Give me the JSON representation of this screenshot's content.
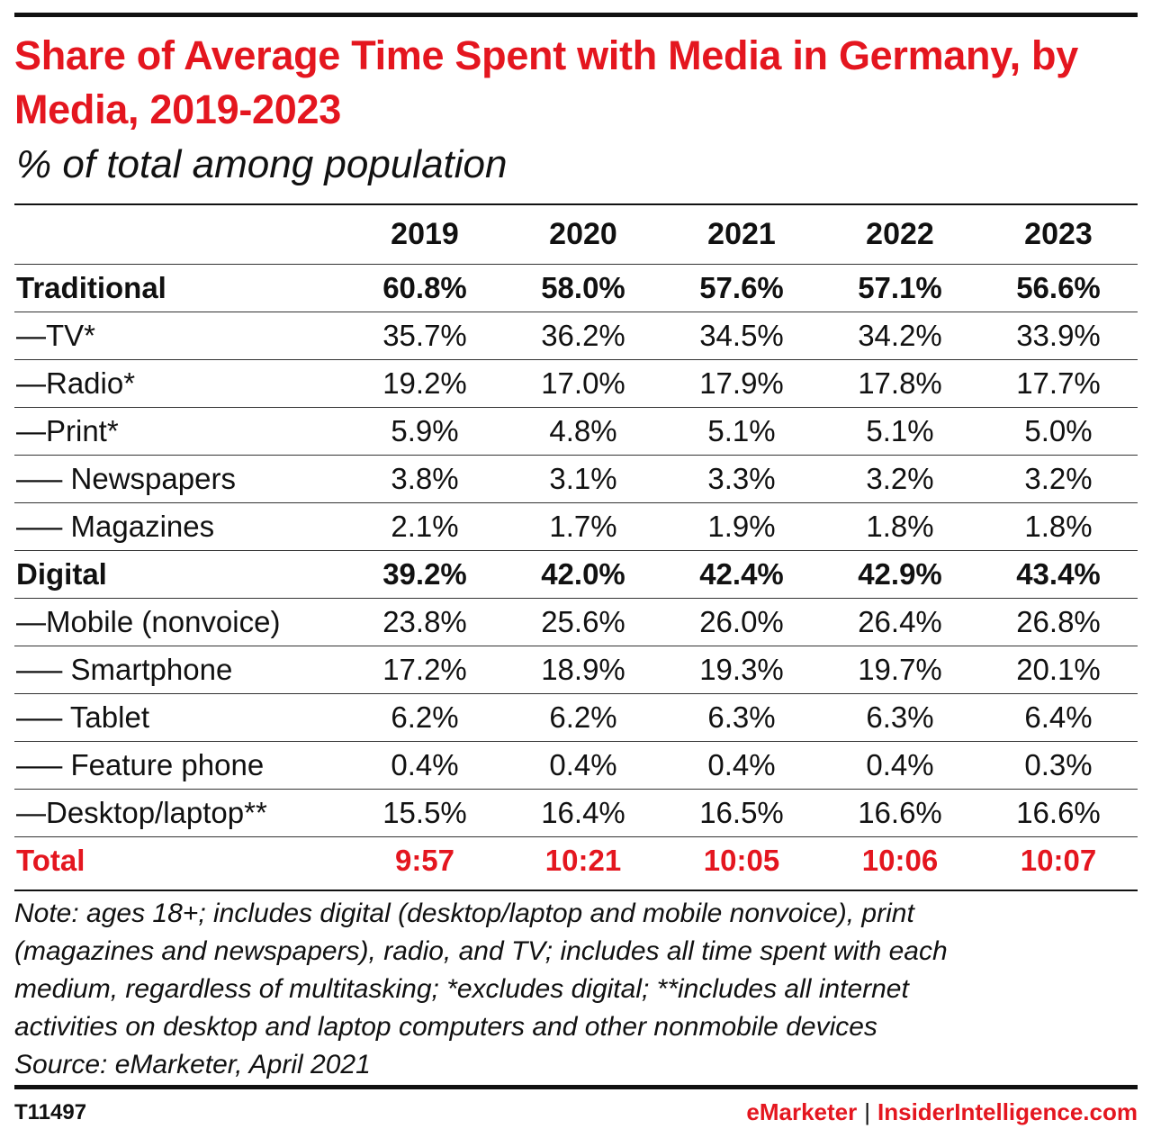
{
  "title": "Share of Average Time Spent with Media in Germany, by Media, 2019-2023",
  "subtitle": "% of total among population",
  "chart_data": {
    "type": "table",
    "title": "Share of Average Time Spent with Media in Germany, by Media, 2019-2023",
    "subtitle": "% of total among population",
    "columns": [
      "2019",
      "2020",
      "2021",
      "2022",
      "2023"
    ],
    "rows": [
      {
        "label": "Traditional",
        "style": "bold",
        "values": [
          "60.8%",
          "58.0%",
          "57.6%",
          "57.1%",
          "56.6%"
        ]
      },
      {
        "label": "—TV*",
        "style": "normal",
        "values": [
          "35.7%",
          "36.2%",
          "34.5%",
          "34.2%",
          "33.9%"
        ]
      },
      {
        "label": "—Radio*",
        "style": "normal",
        "values": [
          "19.2%",
          "17.0%",
          "17.9%",
          "17.8%",
          "17.7%"
        ]
      },
      {
        "label": "—Print*",
        "style": "normal",
        "values": [
          "5.9%",
          "4.8%",
          "5.1%",
          "5.1%",
          "5.0%"
        ]
      },
      {
        "label": "—– Newspapers",
        "style": "normal",
        "values": [
          "3.8%",
          "3.1%",
          "3.3%",
          "3.2%",
          "3.2%"
        ]
      },
      {
        "label": "—– Magazines",
        "style": "normal",
        "values": [
          "2.1%",
          "1.7%",
          "1.9%",
          "1.8%",
          "1.8%"
        ]
      },
      {
        "label": "Digital",
        "style": "bold",
        "values": [
          "39.2%",
          "42.0%",
          "42.4%",
          "42.9%",
          "43.4%"
        ]
      },
      {
        "label": "—Mobile (nonvoice)",
        "style": "normal",
        "values": [
          "23.8%",
          "25.6%",
          "26.0%",
          "26.4%",
          "26.8%"
        ]
      },
      {
        "label": "—– Smartphone",
        "style": "normal",
        "values": [
          "17.2%",
          "18.9%",
          "19.3%",
          "19.7%",
          "20.1%"
        ]
      },
      {
        "label": "—– Tablet",
        "style": "normal",
        "values": [
          "6.2%",
          "6.2%",
          "6.3%",
          "6.3%",
          "6.4%"
        ]
      },
      {
        "label": "—– Feature phone",
        "style": "normal",
        "values": [
          "0.4%",
          "0.4%",
          "0.4%",
          "0.4%",
          "0.3%"
        ]
      },
      {
        "label": "—Desktop/laptop**",
        "style": "normal",
        "values": [
          "15.5%",
          "16.4%",
          "16.5%",
          "16.6%",
          "16.6%"
        ]
      },
      {
        "label": "Total",
        "style": "total",
        "values": [
          "9:57",
          "10:21",
          "10:05",
          "10:06",
          "10:07"
        ]
      }
    ]
  },
  "notes": [
    "Note: ages 18+; includes digital (desktop/laptop and mobile nonvoice), print",
    "(magazines and newspapers), radio, and TV; includes all time spent with each",
    "medium, regardless of multitasking; *excludes digital; **includes all internet",
    "activities on desktop and laptop computers and other nonmobile devices",
    "Source: eMarketer, April 2021"
  ],
  "footer": {
    "id": "T11497",
    "brand_emarketer": "eMarketer",
    "separator": "|",
    "brand_insider": "InsiderIntelligence.com"
  },
  "colors": {
    "accent": "#e4161f",
    "text": "#111111"
  }
}
